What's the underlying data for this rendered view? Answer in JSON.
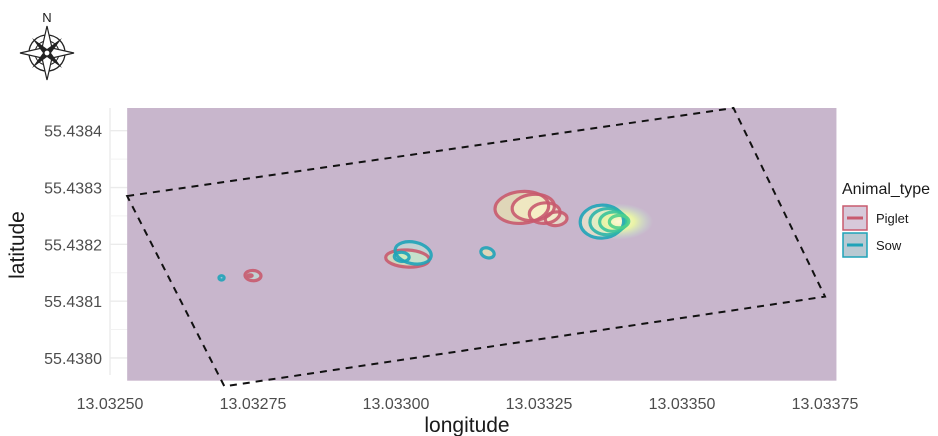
{
  "compass": {
    "north_label": "N",
    "icon": "compass-rose-icon"
  },
  "chart_data": {
    "type": "contour",
    "xlabel": "longitude",
    "ylabel": "latitude",
    "xlim": [
      13.0325,
      13.03375
    ],
    "ylim": [
      55.43797,
      55.43844
    ],
    "x_ticks": [
      13.0325,
      13.03275,
      13.033,
      13.03325,
      13.0335,
      13.03375
    ],
    "x_tick_labels": [
      "13.03250",
      "13.03275",
      "13.03300",
      "13.03325",
      "13.03350",
      "13.03375"
    ],
    "y_ticks": [
      55.438,
      55.4381,
      55.4382,
      55.4383,
      55.4384
    ],
    "y_tick_labels": [
      "55.4380",
      "55.4381",
      "55.4382",
      "55.4383",
      "55.4384"
    ],
    "grid": true,
    "background_rect": {
      "x": [
        13.03253,
        13.03377
      ],
      "y": [
        55.43796,
        55.43844
      ],
      "color": "#c8b6cc"
    },
    "boundary_polygon": [
      [
        13.03253,
        55.438285
      ],
      [
        13.03359,
        55.43844
      ],
      [
        13.03375,
        55.438108
      ],
      [
        13.0327,
        55.43795
      ]
    ],
    "legend": {
      "title": "Animal_type",
      "position": "right",
      "entries": [
        {
          "label": "Piglet",
          "color": "#c85a6e"
        },
        {
          "label": "Sow",
          "color": "#1fa3b8"
        }
      ]
    },
    "series": [
      {
        "name": "Piglet",
        "color": "#c85a6e",
        "contours": [
          {
            "cx": 13.032745,
            "cy": 55.438145,
            "rx": 3.5e-06,
            "ry": 1.4e-06,
            "rot": 0
          },
          {
            "cx": 13.03275,
            "cy": 55.438145,
            "rx": 1.4e-05,
            "ry": 9e-06,
            "rot": -4
          },
          {
            "cx": 13.03302,
            "cy": 55.438175,
            "rx": 3.8e-05,
            "ry": 1.5e-05,
            "rot": -3
          },
          {
            "cx": 13.03322,
            "cy": 55.438265,
            "rx": 4.7e-05,
            "ry": 2.8e-05,
            "rot": 5
          },
          {
            "cx": 13.03324,
            "cy": 55.438265,
            "rx": 3.7e-05,
            "ry": 2.3e-05,
            "rot": 5
          },
          {
            "cx": 13.03326,
            "cy": 55.438255,
            "rx": 2.7e-05,
            "ry": 1.8e-05,
            "rot": 5
          },
          {
            "cx": 13.03328,
            "cy": 55.438245,
            "rx": 1.9e-05,
            "ry": 1.2e-05,
            "rot": 5
          }
        ]
      },
      {
        "name": "Sow",
        "color": "#1fa3b8",
        "contours": [
          {
            "cx": 13.032695,
            "cy": 55.438141,
            "rx": 4.5e-06,
            "ry": 3.8e-06,
            "rot": 0
          },
          {
            "cx": 13.03303,
            "cy": 55.438185,
            "rx": 3.2e-05,
            "ry": 1.9e-05,
            "rot": -12
          },
          {
            "cx": 13.03301,
            "cy": 55.438178,
            "rx": 1.3e-05,
            "ry": 8e-06,
            "rot": -5
          },
          {
            "cx": 13.03316,
            "cy": 55.438185,
            "rx": 1.2e-05,
            "ry": 8.5e-06,
            "rot": -20
          },
          {
            "cx": 13.03336,
            "cy": 55.43824,
            "rx": 3.8e-05,
            "ry": 2.9e-05,
            "rot": 3
          },
          {
            "cx": 13.03337,
            "cy": 55.43824,
            "rx": 3.1e-05,
            "ry": 2.3e-05,
            "rot": 3
          },
          {
            "cx": 13.03338,
            "cy": 55.43824,
            "rx": 2.4e-05,
            "ry": 1.7e-05,
            "rot": 3
          },
          {
            "cx": 13.03339,
            "cy": 55.43824,
            "rx": 1.7e-05,
            "ry": 1.1e-05,
            "rot": 3
          }
        ]
      }
    ],
    "density_fill_colors": [
      "#cfe2f0",
      "#bfe9d8",
      "#d5f2b0",
      "#f2f0a8",
      "#fbf6c8"
    ]
  }
}
